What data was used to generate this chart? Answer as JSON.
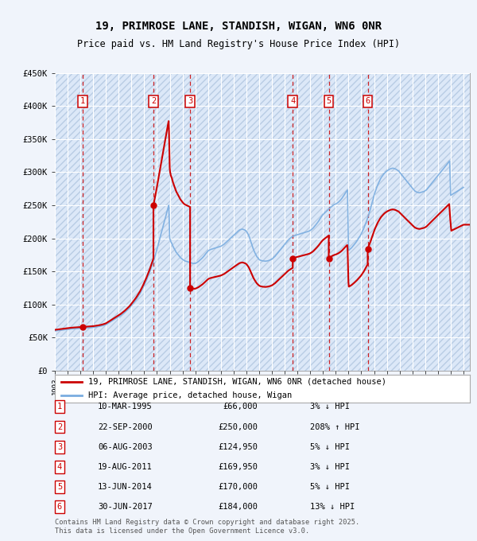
{
  "title": "19, PRIMROSE LANE, STANDISH, WIGAN, WN6 0NR",
  "subtitle": "Price paid vs. HM Land Registry's House Price Index (HPI)",
  "footer": "Contains HM Land Registry data © Crown copyright and database right 2025.\nThis data is licensed under the Open Government Licence v3.0.",
  "legend_line1": "19, PRIMROSE LANE, STANDISH, WIGAN, WN6 0NR (detached house)",
  "legend_line2": "HPI: Average price, detached house, Wigan",
  "ylim": [
    0,
    450000
  ],
  "yticks": [
    0,
    50000,
    100000,
    150000,
    200000,
    250000,
    300000,
    350000,
    400000,
    450000
  ],
  "ytick_labels": [
    "£0",
    "£50K",
    "£100K",
    "£150K",
    "£200K",
    "£250K",
    "£300K",
    "£350K",
    "£400K",
    "£450K"
  ],
  "xlim_start": 1993.0,
  "xlim_end": 2025.5,
  "sales": [
    {
      "num": 1,
      "date_str": "10-MAR-1995",
      "price": 66000,
      "pct": "3%",
      "dir": "↓",
      "year": 1995.19
    },
    {
      "num": 2,
      "date_str": "22-SEP-2000",
      "price": 250000,
      "pct": "208%",
      "dir": "↑",
      "year": 2000.72
    },
    {
      "num": 3,
      "date_str": "06-AUG-2003",
      "price": 124950,
      "pct": "5%",
      "dir": "↓",
      "year": 2003.59
    },
    {
      "num": 4,
      "date_str": "19-AUG-2011",
      "price": 169950,
      "pct": "3%",
      "dir": "↓",
      "year": 2011.63
    },
    {
      "num": 5,
      "date_str": "13-JUN-2014",
      "price": 170000,
      "pct": "5%",
      "dir": "↓",
      "year": 2014.45
    },
    {
      "num": 6,
      "date_str": "30-JUN-2017",
      "price": 184000,
      "pct": "13%",
      "dir": "↓",
      "year": 2017.5
    }
  ],
  "table_rows": [
    {
      "num": "1",
      "date": "10-MAR-1995",
      "price": "£66,000",
      "pct": "3% ↓ HPI"
    },
    {
      "num": "2",
      "date": "22-SEP-2000",
      "price": "£250,000",
      "pct": "208% ↑ HPI"
    },
    {
      "num": "3",
      "date": "06-AUG-2003",
      "price": "£124,950",
      "pct": "5% ↓ HPI"
    },
    {
      "num": "4",
      "date": "19-AUG-2011",
      "price": "£169,950",
      "pct": "3% ↓ HPI"
    },
    {
      "num": "5",
      "date": "13-JUN-2014",
      "price": "£170,000",
      "pct": "5% ↓ HPI"
    },
    {
      "num": "6",
      "date": "30-JUN-2017",
      "price": "£184,000",
      "pct": "13% ↓ HPI"
    }
  ],
  "hpi_x": [
    1993.0,
    1993.08,
    1993.17,
    1993.25,
    1993.33,
    1993.42,
    1993.5,
    1993.58,
    1993.67,
    1993.75,
    1993.83,
    1993.92,
    1994.0,
    1994.08,
    1994.17,
    1994.25,
    1994.33,
    1994.42,
    1994.5,
    1994.58,
    1994.67,
    1994.75,
    1994.83,
    1994.92,
    1995.0,
    1995.08,
    1995.17,
    1995.25,
    1995.33,
    1995.42,
    1995.5,
    1995.58,
    1995.67,
    1995.75,
    1995.83,
    1995.92,
    1996.0,
    1996.08,
    1996.17,
    1996.25,
    1996.33,
    1996.42,
    1996.5,
    1996.58,
    1996.67,
    1996.75,
    1996.83,
    1996.92,
    1997.0,
    1997.08,
    1997.17,
    1997.25,
    1997.33,
    1997.42,
    1997.5,
    1997.58,
    1997.67,
    1997.75,
    1997.83,
    1997.92,
    1998.0,
    1998.08,
    1998.17,
    1998.25,
    1998.33,
    1998.42,
    1998.5,
    1998.58,
    1998.67,
    1998.75,
    1998.83,
    1998.92,
    1999.0,
    1999.08,
    1999.17,
    1999.25,
    1999.33,
    1999.42,
    1999.5,
    1999.58,
    1999.67,
    1999.75,
    1999.83,
    1999.92,
    2000.0,
    2000.08,
    2000.17,
    2000.25,
    2000.33,
    2000.42,
    2000.5,
    2000.58,
    2000.67,
    2000.75,
    2000.83,
    2000.92,
    2001.0,
    2001.08,
    2001.17,
    2001.25,
    2001.33,
    2001.42,
    2001.5,
    2001.58,
    2001.67,
    2001.75,
    2001.83,
    2001.92,
    2002.0,
    2002.08,
    2002.17,
    2002.25,
    2002.33,
    2002.42,
    2002.5,
    2002.58,
    2002.67,
    2002.75,
    2002.83,
    2002.92,
    2003.0,
    2003.08,
    2003.17,
    2003.25,
    2003.33,
    2003.42,
    2003.5,
    2003.58,
    2003.67,
    2003.75,
    2003.83,
    2003.92,
    2004.0,
    2004.08,
    2004.17,
    2004.25,
    2004.33,
    2004.42,
    2004.5,
    2004.58,
    2004.67,
    2004.75,
    2004.83,
    2004.92,
    2005.0,
    2005.08,
    2005.17,
    2005.25,
    2005.33,
    2005.42,
    2005.5,
    2005.58,
    2005.67,
    2005.75,
    2005.83,
    2005.92,
    2006.0,
    2006.08,
    2006.17,
    2006.25,
    2006.33,
    2006.42,
    2006.5,
    2006.58,
    2006.67,
    2006.75,
    2006.83,
    2006.92,
    2007.0,
    2007.08,
    2007.17,
    2007.25,
    2007.33,
    2007.42,
    2007.5,
    2007.58,
    2007.67,
    2007.75,
    2007.83,
    2007.92,
    2008.0,
    2008.08,
    2008.17,
    2008.25,
    2008.33,
    2008.42,
    2008.5,
    2008.58,
    2008.67,
    2008.75,
    2008.83,
    2008.92,
    2009.0,
    2009.08,
    2009.17,
    2009.25,
    2009.33,
    2009.42,
    2009.5,
    2009.58,
    2009.67,
    2009.75,
    2009.83,
    2009.92,
    2010.0,
    2010.08,
    2010.17,
    2010.25,
    2010.33,
    2010.42,
    2010.5,
    2010.58,
    2010.67,
    2010.75,
    2010.83,
    2010.92,
    2011.0,
    2011.08,
    2011.17,
    2011.25,
    2011.33,
    2011.42,
    2011.5,
    2011.58,
    2011.67,
    2011.75,
    2011.83,
    2011.92,
    2012.0,
    2012.08,
    2012.17,
    2012.25,
    2012.33,
    2012.42,
    2012.5,
    2012.58,
    2012.67,
    2012.75,
    2012.83,
    2012.92,
    2013.0,
    2013.08,
    2013.17,
    2013.25,
    2013.33,
    2013.42,
    2013.5,
    2013.58,
    2013.67,
    2013.75,
    2013.83,
    2013.92,
    2014.0,
    2014.08,
    2014.17,
    2014.25,
    2014.33,
    2014.42,
    2014.5,
    2014.58,
    2014.67,
    2014.75,
    2014.83,
    2014.92,
    2015.0,
    2015.08,
    2015.17,
    2015.25,
    2015.33,
    2015.42,
    2015.5,
    2015.58,
    2015.67,
    2015.75,
    2015.83,
    2015.92,
    2016.0,
    2016.08,
    2016.17,
    2016.25,
    2016.33,
    2016.42,
    2016.5,
    2016.58,
    2016.67,
    2016.75,
    2016.83,
    2016.92,
    2017.0,
    2017.08,
    2017.17,
    2017.25,
    2017.33,
    2017.42,
    2017.5,
    2017.58,
    2017.67,
    2017.75,
    2017.83,
    2017.92,
    2018.0,
    2018.08,
    2018.17,
    2018.25,
    2018.33,
    2018.42,
    2018.5,
    2018.58,
    2018.67,
    2018.75,
    2018.83,
    2018.92,
    2019.0,
    2019.08,
    2019.17,
    2019.25,
    2019.33,
    2019.42,
    2019.5,
    2019.58,
    2019.67,
    2019.75,
    2019.83,
    2019.92,
    2020.0,
    2020.08,
    2020.17,
    2020.25,
    2020.33,
    2020.42,
    2020.5,
    2020.58,
    2020.67,
    2020.75,
    2020.83,
    2020.92,
    2021.0,
    2021.08,
    2021.17,
    2021.25,
    2021.33,
    2021.42,
    2021.5,
    2021.58,
    2021.67,
    2021.75,
    2021.83,
    2021.92,
    2022.0,
    2022.08,
    2022.17,
    2022.25,
    2022.33,
    2022.42,
    2022.5,
    2022.58,
    2022.67,
    2022.75,
    2022.83,
    2022.92,
    2023.0,
    2023.08,
    2023.17,
    2023.25,
    2023.33,
    2023.42,
    2023.5,
    2023.58,
    2023.67,
    2023.75,
    2023.83,
    2023.92,
    2024.0,
    2024.08,
    2024.17,
    2024.25,
    2024.33,
    2024.42,
    2024.5,
    2024.58,
    2024.67,
    2024.75,
    2024.83,
    2024.92,
    2025.0
  ],
  "hpi_y": [
    60000,
    60200,
    60400,
    60600,
    60800,
    61000,
    61200,
    61400,
    61600,
    61800,
    62000,
    62200,
    62400,
    62600,
    62800,
    63000,
    63200,
    63300,
    63400,
    63500,
    63600,
    63700,
    63800,
    63900,
    64000,
    64100,
    64200,
    64300,
    64400,
    64500,
    64600,
    64700,
    64800,
    64900,
    65000,
    65200,
    65400,
    65600,
    65800,
    66000,
    66300,
    66600,
    66900,
    67200,
    67500,
    68000,
    68500,
    69000,
    69500,
    70500,
    71500,
    72500,
    73500,
    74500,
    75500,
    76500,
    77500,
    78500,
    79500,
    80500,
    81500,
    82500,
    83500,
    84800,
    86000,
    87200,
    88500,
    90000,
    91500,
    93000,
    94500,
    96500,
    98500,
    100500,
    102500,
    104500,
    106500,
    109000,
    111500,
    114000,
    116500,
    119500,
    122500,
    126000,
    129500,
    133000,
    136500,
    140500,
    144500,
    148500,
    153000,
    157500,
    162000,
    167000,
    172500,
    178000,
    184000,
    190000,
    196000,
    202000,
    208000,
    214000,
    220000,
    226000,
    232000,
    238000,
    244000,
    250000,
    200000,
    195000,
    192000,
    188000,
    185000,
    182000,
    179000,
    177000,
    175000,
    173000,
    171000,
    169500,
    168000,
    167000,
    166000,
    165500,
    165000,
    164500,
    164000,
    163500,
    163000,
    162500,
    162000,
    162000,
    162000,
    163000,
    164000,
    165000,
    166500,
    168000,
    169500,
    171000,
    173000,
    175000,
    177000,
    179000,
    181000,
    182000,
    183000,
    183500,
    184000,
    184500,
    185000,
    185500,
    186000,
    186500,
    187000,
    187500,
    188000,
    189000,
    190000,
    191000,
    192500,
    194000,
    195500,
    197000,
    198500,
    200000,
    201500,
    203000,
    204500,
    206000,
    207500,
    209000,
    210500,
    212000,
    213000,
    213500,
    214000,
    213500,
    213000,
    212000,
    211000,
    208000,
    205000,
    201000,
    196000,
    191000,
    186000,
    182000,
    178000,
    175000,
    172000,
    170000,
    168000,
    167000,
    166500,
    166000,
    165800,
    165600,
    165500,
    165700,
    166000,
    166500,
    167000,
    167800,
    168500,
    170000,
    171500,
    173000,
    175000,
    177000,
    179000,
    181000,
    183000,
    185000,
    187000,
    189000,
    191000,
    193000,
    195000,
    197000,
    198500,
    200000,
    201500,
    202500,
    203500,
    204000,
    204500,
    205000,
    205500,
    206000,
    206500,
    207000,
    207500,
    208000,
    208500,
    209000,
    209500,
    210000,
    210500,
    211000,
    212000,
    213000,
    214500,
    216000,
    218000,
    220000,
    222000,
    224000,
    226500,
    229000,
    231500,
    234000,
    236000,
    237500,
    239000,
    240500,
    242000,
    243500,
    245000,
    246500,
    248000,
    249500,
    250500,
    251500,
    252000,
    253000,
    254000,
    255500,
    257000,
    259000,
    261000,
    263500,
    266000,
    268500,
    271000,
    273000,
    182000,
    183000,
    184500,
    186000,
    188000,
    190000,
    192000,
    194000,
    196500,
    199000,
    201500,
    204000,
    207000,
    210500,
    214000,
    218000,
    222000,
    226500,
    231000,
    236000,
    241500,
    247000,
    253000,
    259000,
    265000,
    270000,
    275000,
    279000,
    283000,
    286500,
    290000,
    292500,
    295000,
    297000,
    299000,
    300500,
    302000,
    303000,
    304000,
    305000,
    305500,
    306000,
    306000,
    305500,
    305000,
    304000,
    303000,
    302000,
    300000,
    298000,
    296000,
    294000,
    292000,
    290000,
    288000,
    286000,
    284000,
    282000,
    280000,
    278000,
    276000,
    274000,
    272000,
    271000,
    270000,
    269500,
    269000,
    269000,
    269500,
    270000,
    270500,
    271000,
    272000,
    273000,
    275000,
    277000,
    279000,
    281000,
    283000,
    285000,
    287000,
    289000,
    291000,
    293000,
    295000,
    297000,
    299000,
    301000,
    303000,
    305000,
    307000,
    309000,
    311000,
    313000,
    315000,
    317000,
    265000,
    266000,
    267000,
    268000,
    269000,
    270000,
    271000,
    272000,
    273000,
    274000,
    275000,
    276000,
    277000
  ],
  "bg_color": "#f0f4fb",
  "plot_bg": "#dce8f8",
  "hatch_color": "#b8cce4",
  "grid_color": "#ffffff",
  "red_line_color": "#cc0000",
  "blue_line_color": "#7aade0",
  "vline_color": "#cc0000",
  "box_color": "#cc0000",
  "title_fontsize": 10,
  "subtitle_fontsize": 8.5
}
